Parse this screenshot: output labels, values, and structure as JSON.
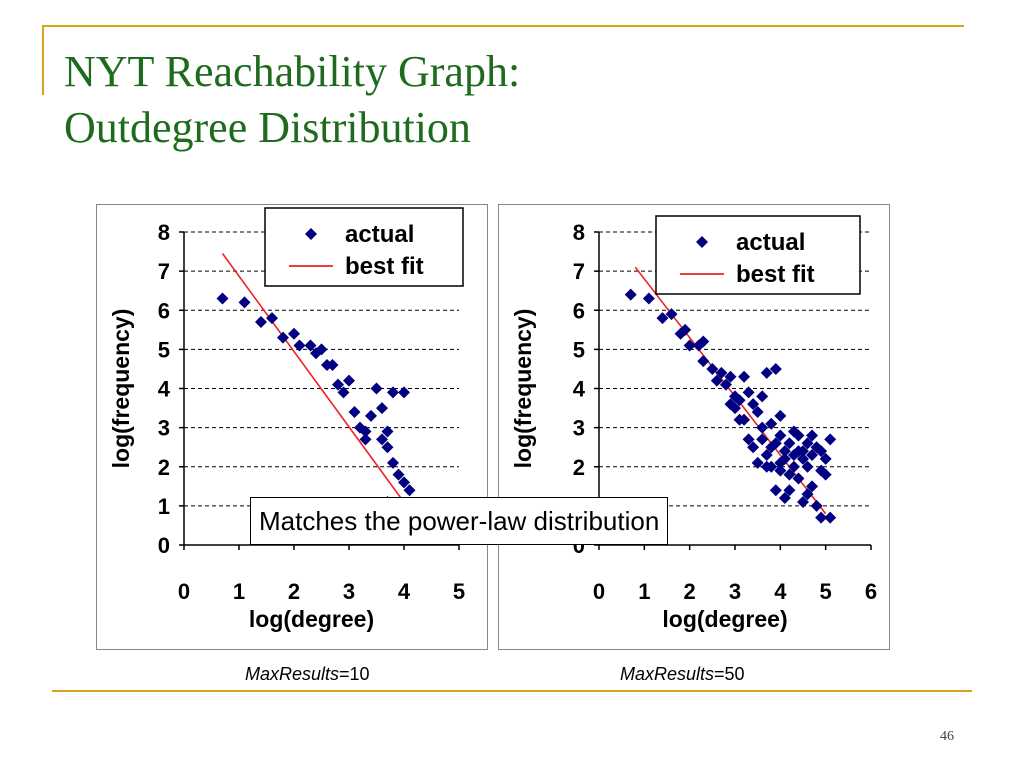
{
  "slide": {
    "title_line1": "NYT Reachability Graph:",
    "title_line2": "Outdegree Distribution",
    "callout": "Matches the power-law distribution",
    "page_number": "46"
  },
  "colors": {
    "points": "#000080",
    "fit": "#ee2222",
    "accent": "#d9a21b",
    "title": "#1e6b1e"
  },
  "chart_data": [
    {
      "type": "scatter",
      "caption_param": "MaxResults",
      "caption_value": "=10",
      "xlabel": "log(degree)",
      "ylabel": "log(frequency)",
      "xlim": [
        0,
        5
      ],
      "ylim": [
        0,
        8
      ],
      "xticks": [
        "0",
        "1",
        "2",
        "3",
        "4",
        "5"
      ],
      "yticks": [
        "0",
        "1",
        "2",
        "3",
        "4",
        "5",
        "6",
        "7",
        "8"
      ],
      "grid": "horizontal-dashed",
      "legend": {
        "placement": "top-right",
        "actual": "actual",
        "fit": "best fit"
      },
      "series": [
        {
          "name": "actual",
          "points": [
            [
              0.7,
              6.3
            ],
            [
              1.1,
              6.2
            ],
            [
              1.4,
              5.7
            ],
            [
              1.6,
              5.8
            ],
            [
              1.8,
              5.3
            ],
            [
              2.0,
              5.4
            ],
            [
              2.1,
              5.1
            ],
            [
              2.3,
              5.1
            ],
            [
              2.4,
              4.9
            ],
            [
              2.5,
              5.0
            ],
            [
              2.6,
              4.6
            ],
            [
              2.7,
              4.6
            ],
            [
              2.8,
              4.1
            ],
            [
              2.9,
              3.9
            ],
            [
              3.0,
              4.2
            ],
            [
              3.1,
              3.4
            ],
            [
              3.2,
              3.0
            ],
            [
              3.3,
              2.7
            ],
            [
              3.3,
              2.9
            ],
            [
              3.4,
              3.3
            ],
            [
              3.5,
              4.0
            ],
            [
              3.6,
              3.5
            ],
            [
              3.6,
              2.7
            ],
            [
              3.7,
              2.5
            ],
            [
              3.7,
              2.9
            ],
            [
              3.8,
              2.1
            ],
            [
              3.8,
              3.9
            ],
            [
              3.9,
              1.8
            ],
            [
              4.0,
              3.9
            ],
            [
              4.0,
              1.6
            ],
            [
              4.1,
              1.4
            ],
            [
              3.7,
              1.1
            ]
          ]
        },
        {
          "name": "best fit",
          "points": [
            [
              0.7,
              7.45
            ],
            [
              4.1,
              0.9
            ]
          ]
        }
      ]
    },
    {
      "type": "scatter",
      "caption_param": "MaxResults",
      "caption_value": "=50",
      "xlabel": "log(degree)",
      "ylabel": "log(frequency)",
      "xlim": [
        0,
        6
      ],
      "ylim": [
        0,
        8
      ],
      "xticks": [
        "0",
        "1",
        "2",
        "3",
        "4",
        "5",
        "6"
      ],
      "yticks": [
        "0",
        "1",
        "2",
        "3",
        "4",
        "5",
        "6",
        "7",
        "8"
      ],
      "grid": "horizontal-dashed",
      "legend": {
        "placement": "top-right",
        "actual": "actual",
        "fit": "best fit"
      },
      "series": [
        {
          "name": "actual",
          "points": [
            [
              0.7,
              6.4
            ],
            [
              1.1,
              6.3
            ],
            [
              1.4,
              5.8
            ],
            [
              1.6,
              5.9
            ],
            [
              1.8,
              5.4
            ],
            [
              1.9,
              5.5
            ],
            [
              2.0,
              5.1
            ],
            [
              2.2,
              5.1
            ],
            [
              2.3,
              5.2
            ],
            [
              2.3,
              4.7
            ],
            [
              2.5,
              4.5
            ],
            [
              2.6,
              4.2
            ],
            [
              2.7,
              4.4
            ],
            [
              2.8,
              4.1
            ],
            [
              2.9,
              4.3
            ],
            [
              3.0,
              3.8
            ],
            [
              3.0,
              3.5
            ],
            [
              3.1,
              3.7
            ],
            [
              3.2,
              4.3
            ],
            [
              3.2,
              3.2
            ],
            [
              3.3,
              3.9
            ],
            [
              3.4,
              3.6
            ],
            [
              3.5,
              2.1
            ],
            [
              3.5,
              3.4
            ],
            [
              3.6,
              2.7
            ],
            [
              3.6,
              3.0
            ],
            [
              3.7,
              4.4
            ],
            [
              3.7,
              2.3
            ],
            [
              3.8,
              2.0
            ],
            [
              3.8,
              3.1
            ],
            [
              3.9,
              4.5
            ],
            [
              3.9,
              2.6
            ],
            [
              3.9,
              1.4
            ],
            [
              4.0,
              2.8
            ],
            [
              4.0,
              1.9
            ],
            [
              4.1,
              2.4
            ],
            [
              4.1,
              2.2
            ],
            [
              4.2,
              1.4
            ],
            [
              4.2,
              2.6
            ],
            [
              4.3,
              2.0
            ],
            [
              4.3,
              2.9
            ],
            [
              4.4,
              1.7
            ],
            [
              4.4,
              2.4
            ],
            [
              4.5,
              2.2
            ],
            [
              4.5,
              1.1
            ],
            [
              4.6,
              2.6
            ],
            [
              4.6,
              2.0
            ],
            [
              4.7,
              1.5
            ],
            [
              4.7,
              2.3
            ],
            [
              4.8,
              1.0
            ],
            [
              4.8,
              2.5
            ],
            [
              4.9,
              1.9
            ],
            [
              4.9,
              0.7
            ],
            [
              5.0,
              2.2
            ],
            [
              5.1,
              2.7
            ],
            [
              5.1,
              0.7
            ],
            [
              3.6,
              3.8
            ],
            [
              3.3,
              2.7
            ],
            [
              4.0,
              3.3
            ],
            [
              4.2,
              1.8
            ],
            [
              4.4,
              2.8
            ],
            [
              4.6,
              1.3
            ],
            [
              3.8,
              2.5
            ],
            [
              4.1,
              1.2
            ],
            [
              4.5,
              2.4
            ],
            [
              5.0,
              1.8
            ],
            [
              3.4,
              2.5
            ],
            [
              4.3,
              2.3
            ],
            [
              4.7,
              2.8
            ],
            [
              4.0,
              2.1
            ],
            [
              3.7,
              2.0
            ],
            [
              4.9,
              2.4
            ],
            [
              3.1,
              3.2
            ],
            [
              2.9,
              3.6
            ]
          ]
        },
        {
          "name": "best fit",
          "points": [
            [
              0.8,
              7.1
            ],
            [
              5.0,
              0.8
            ]
          ]
        }
      ]
    }
  ]
}
